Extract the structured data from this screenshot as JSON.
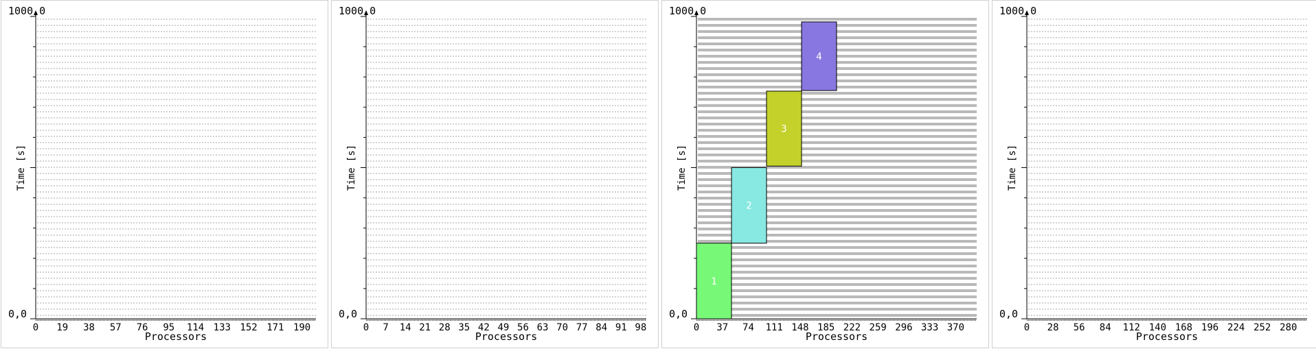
{
  "chart_data": [
    {
      "type": "bar",
      "title": "",
      "xlabel": "Processors",
      "ylabel": "Time [s]",
      "y_top_label": "1000,0",
      "y_bottom_label": "0,0",
      "ylim": [
        0,
        1000
      ],
      "xlim": [
        0,
        200
      ],
      "x_ticks": [
        0,
        19,
        38,
        57,
        76,
        95,
        114,
        133,
        152,
        171,
        190
      ],
      "processor_lines": "light",
      "jobs": []
    },
    {
      "type": "bar",
      "title": "",
      "xlabel": "Processors",
      "ylabel": "Time [s]",
      "y_top_label": "1000,0",
      "y_bottom_label": "0,0",
      "ylim": [
        0,
        1000
      ],
      "xlim": [
        0,
        100
      ],
      "x_ticks": [
        0,
        7,
        14,
        21,
        28,
        35,
        42,
        49,
        56,
        63,
        70,
        77,
        84,
        91,
        98
      ],
      "processor_lines": "light",
      "jobs": []
    },
    {
      "type": "bar",
      "title": "",
      "xlabel": "Processors",
      "ylabel": "Time [s]",
      "y_top_label": "1000,0",
      "y_bottom_label": "0,0",
      "ylim": [
        0,
        1000
      ],
      "xlim": [
        0,
        400
      ],
      "x_ticks": [
        0,
        37,
        74,
        111,
        148,
        185,
        222,
        259,
        296,
        333,
        370
      ],
      "processor_lines": "dark",
      "jobs": [
        {
          "label": "1",
          "proc_start": 0,
          "proc_end": 50,
          "time_start": 0,
          "time_end": 250,
          "color": "#77f977"
        },
        {
          "label": "2",
          "proc_start": 50,
          "proc_end": 100,
          "time_start": 250,
          "time_end": 500,
          "color": "#88e8e2"
        },
        {
          "label": "3",
          "proc_start": 100,
          "proc_end": 150,
          "time_start": 505,
          "time_end": 753,
          "color": "#c3d12a"
        },
        {
          "label": "4",
          "proc_start": 150,
          "proc_end": 200,
          "time_start": 755,
          "time_end": 982,
          "color": "#8877e0"
        }
      ]
    },
    {
      "type": "bar",
      "title": "",
      "xlabel": "Processors",
      "ylabel": "Time [s]",
      "y_top_label": "1000,0",
      "y_bottom_label": "0,0",
      "ylim": [
        0,
        1000
      ],
      "xlim": [
        0,
        300
      ],
      "x_ticks": [
        0,
        28,
        56,
        84,
        112,
        140,
        168,
        196,
        224,
        252,
        280
      ],
      "processor_lines": "light",
      "jobs": []
    }
  ]
}
